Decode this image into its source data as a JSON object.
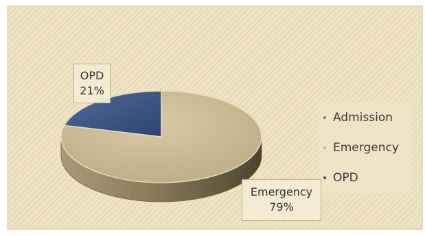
{
  "chart_data": {
    "type": "pie",
    "style": "3d",
    "categories": [
      "Admission",
      "Emergency",
      "OPD"
    ],
    "values": [
      0,
      79,
      21
    ],
    "colors": [
      "#9e8a5e",
      "#c8b893",
      "#3e5888"
    ],
    "data_labels": [
      {
        "category": "OPD",
        "percent": "21%"
      },
      {
        "category": "Emergency",
        "percent": "79%"
      }
    ],
    "legend_placement": "right",
    "background": "diagonal-hatched beige"
  }
}
